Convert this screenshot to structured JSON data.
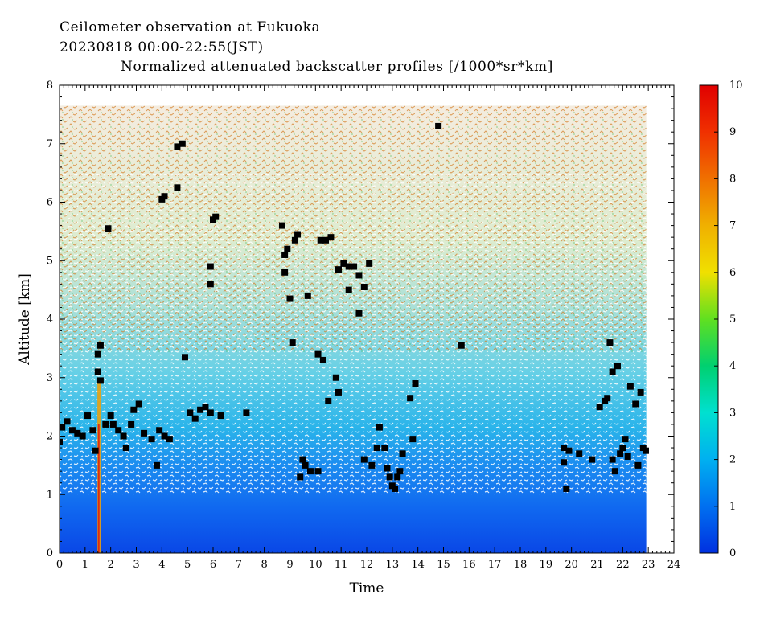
{
  "header": {
    "line1": "Ceilometer observation at Fukuoka",
    "line2": "20230818  00:00-22:55(JST)",
    "line3": "Normalized attenuated backscatter profiles [/1000*sr*km]"
  },
  "chart_data": {
    "type": "heatmap",
    "title": "Normalized attenuated backscatter profiles [/1000*sr*km]",
    "xlabel": "Time",
    "ylabel": "Altitude [km]",
    "xlim": [
      0,
      24
    ],
    "ylim": [
      0,
      8
    ],
    "x_ticks": [
      "0",
      "1",
      "2",
      "3",
      "4",
      "5",
      "6",
      "7",
      "8",
      "9",
      "10",
      "11",
      "12",
      "13",
      "14",
      "15",
      "16",
      "17",
      "18",
      "19",
      "20",
      "21",
      "22",
      "23",
      "24"
    ],
    "y_ticks": [
      "0",
      "1",
      "2",
      "3",
      "4",
      "5",
      "6",
      "7",
      "8"
    ],
    "data_time_range": [
      0,
      22.92
    ],
    "data_altitude_top": 7.65,
    "colorbar": {
      "min": 0,
      "max": 10,
      "ticks": [
        "0",
        "1",
        "2",
        "3",
        "4",
        "5",
        "6",
        "7",
        "8",
        "9",
        "10"
      ],
      "colors": [
        "#0030e0",
        "#0070f0",
        "#00b0f0",
        "#00e0d0",
        "#00d070",
        "#60e020",
        "#f0e000",
        "#f0b000",
        "#f07000",
        "#f03000",
        "#e00000"
      ]
    },
    "cloud_points": [
      [
        0.0,
        1.9
      ],
      [
        0.1,
        2.15
      ],
      [
        0.3,
        2.25
      ],
      [
        0.5,
        2.1
      ],
      [
        0.7,
        2.05
      ],
      [
        0.9,
        2.0
      ],
      [
        1.1,
        2.35
      ],
      [
        1.3,
        2.1
      ],
      [
        1.4,
        1.75
      ],
      [
        1.5,
        3.1
      ],
      [
        1.5,
        3.4
      ],
      [
        1.6,
        3.55
      ],
      [
        1.6,
        2.95
      ],
      [
        1.8,
        2.2
      ],
      [
        2.0,
        2.35
      ],
      [
        2.1,
        2.2
      ],
      [
        2.3,
        2.1
      ],
      [
        2.5,
        2.0
      ],
      [
        2.6,
        1.8
      ],
      [
        2.8,
        2.2
      ],
      [
        2.9,
        2.45
      ],
      [
        3.1,
        2.55
      ],
      [
        3.3,
        2.05
      ],
      [
        3.6,
        1.95
      ],
      [
        3.9,
        2.1
      ],
      [
        4.1,
        2.0
      ],
      [
        4.3,
        1.95
      ],
      [
        3.8,
        1.5
      ],
      [
        4.0,
        6.05
      ],
      [
        4.1,
        6.1
      ],
      [
        4.6,
        6.25
      ],
      [
        4.6,
        6.95
      ],
      [
        4.8,
        7.0
      ],
      [
        4.9,
        3.35
      ],
      [
        5.1,
        2.4
      ],
      [
        5.3,
        2.3
      ],
      [
        5.5,
        2.45
      ],
      [
        5.7,
        2.5
      ],
      [
        5.9,
        2.4
      ],
      [
        5.9,
        4.9
      ],
      [
        5.9,
        4.6
      ],
      [
        6.0,
        5.7
      ],
      [
        6.1,
        5.75
      ],
      [
        6.3,
        2.35
      ],
      [
        7.3,
        2.4
      ],
      [
        1.9,
        5.55
      ],
      [
        8.7,
        5.6
      ],
      [
        8.8,
        5.1
      ],
      [
        8.9,
        5.2
      ],
      [
        9.2,
        5.35
      ],
      [
        9.3,
        5.45
      ],
      [
        8.8,
        4.8
      ],
      [
        9.0,
        4.35
      ],
      [
        9.1,
        3.6
      ],
      [
        9.7,
        4.4
      ],
      [
        10.2,
        5.35
      ],
      [
        10.4,
        5.35
      ],
      [
        10.6,
        5.4
      ],
      [
        10.9,
        4.85
      ],
      [
        11.1,
        4.95
      ],
      [
        11.3,
        4.9
      ],
      [
        11.5,
        4.9
      ],
      [
        11.7,
        4.75
      ],
      [
        11.9,
        4.55
      ],
      [
        12.1,
        4.95
      ],
      [
        11.7,
        4.1
      ],
      [
        11.3,
        4.5
      ],
      [
        10.1,
        3.4
      ],
      [
        10.3,
        3.3
      ],
      [
        10.5,
        2.6
      ],
      [
        10.8,
        3.0
      ],
      [
        10.9,
        2.75
      ],
      [
        9.4,
        1.3
      ],
      [
        9.6,
        1.5
      ],
      [
        9.8,
        1.4
      ],
      [
        10.1,
        1.4
      ],
      [
        9.5,
        1.6
      ],
      [
        11.9,
        1.6
      ],
      [
        12.2,
        1.5
      ],
      [
        12.4,
        1.8
      ],
      [
        12.5,
        2.15
      ],
      [
        12.7,
        1.8
      ],
      [
        12.8,
        1.45
      ],
      [
        12.9,
        1.3
      ],
      [
        13.0,
        1.15
      ],
      [
        13.1,
        1.1
      ],
      [
        13.2,
        1.3
      ],
      [
        13.3,
        1.4
      ],
      [
        13.4,
        1.7
      ],
      [
        13.7,
        2.65
      ],
      [
        13.9,
        2.9
      ],
      [
        13.8,
        1.95
      ],
      [
        14.8,
        7.3
      ],
      [
        15.7,
        3.55
      ],
      [
        19.7,
        1.8
      ],
      [
        19.7,
        1.55
      ],
      [
        19.8,
        1.1
      ],
      [
        19.9,
        1.75
      ],
      [
        20.3,
        1.7
      ],
      [
        20.8,
        1.6
      ],
      [
        21.1,
        2.5
      ],
      [
        21.3,
        2.6
      ],
      [
        21.5,
        3.6
      ],
      [
        21.6,
        3.1
      ],
      [
        21.8,
        3.2
      ],
      [
        21.6,
        1.6
      ],
      [
        21.7,
        1.4
      ],
      [
        21.9,
        1.7
      ],
      [
        22.0,
        1.8
      ],
      [
        22.1,
        1.95
      ],
      [
        22.3,
        2.85
      ],
      [
        22.5,
        2.55
      ],
      [
        22.7,
        2.75
      ],
      [
        22.6,
        1.5
      ],
      [
        22.8,
        1.8
      ],
      [
        22.9,
        1.75
      ],
      [
        21.4,
        2.65
      ],
      [
        22.2,
        1.65
      ]
    ]
  }
}
